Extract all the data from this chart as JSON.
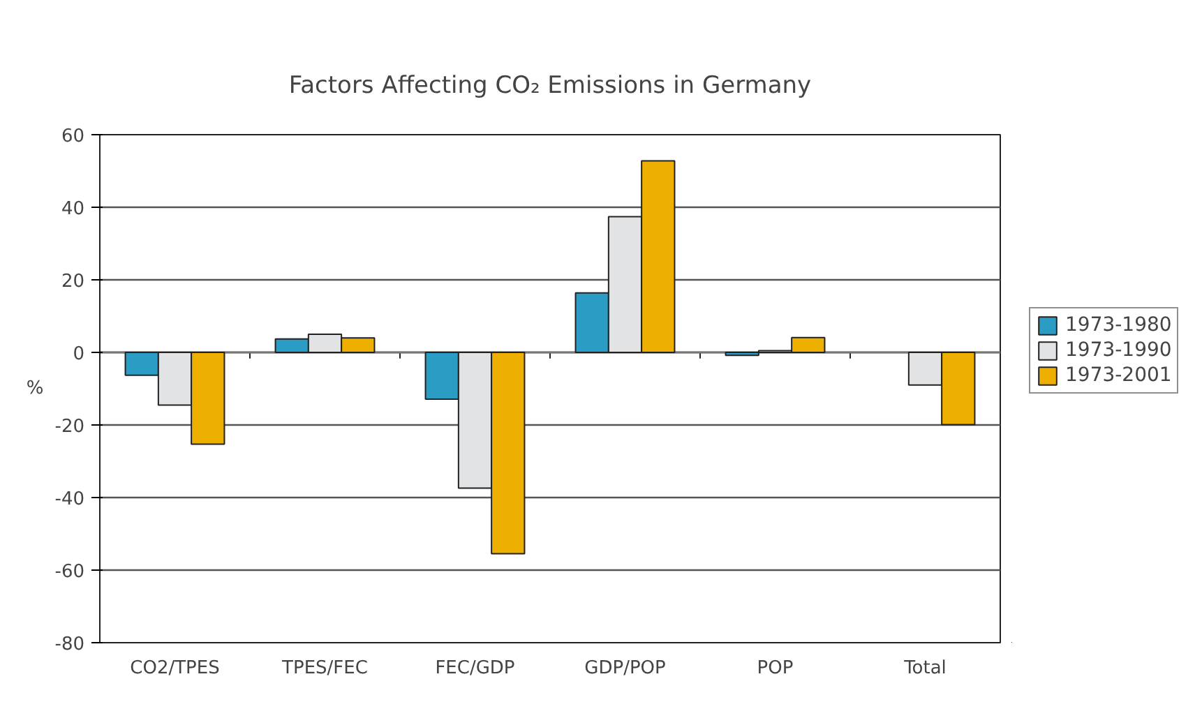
{
  "chart_data": {
    "type": "bar",
    "title": "Factors Affecting CO₂ Emissions in Germany",
    "ylabel": "%",
    "categories": [
      "CO2/TPES",
      "TPES/FEC",
      "FEC/GDP",
      "GDP/POP",
      "POP",
      "Total"
    ],
    "series": [
      {
        "name": "1973-1980",
        "color": "#2b9cc4",
        "values": [
          -6.3,
          3.7,
          -12.9,
          16.4,
          -0.8,
          null
        ]
      },
      {
        "name": "1973-1990",
        "color": "#e2e3e5",
        "values": [
          -14.5,
          5.0,
          -37.4,
          37.4,
          0.5,
          -9.0
        ]
      },
      {
        "name": "1973-2001",
        "color": "#edb000",
        "values": [
          -25.3,
          4.0,
          -55.5,
          52.8,
          4.1,
          -19.9
        ]
      }
    ],
    "ylim": [
      -80,
      60
    ],
    "yticks": [
      -80,
      -60,
      -40,
      -20,
      0,
      20,
      40,
      60
    ],
    "grid": "y",
    "legend": "right"
  }
}
